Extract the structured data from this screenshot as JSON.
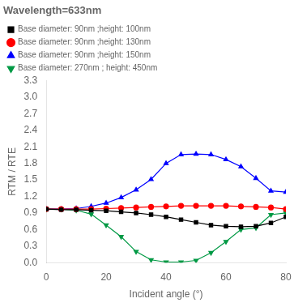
{
  "chart_data": {
    "type": "line",
    "title": "Wavelength=633nm",
    "xlabel": "Incident angle (°)",
    "ylabel": "RTM / RTE",
    "xlim": [
      0,
      80
    ],
    "ylim": [
      0.0,
      3.3
    ],
    "xticks": [
      0,
      20,
      40,
      60,
      80
    ],
    "yticks": [
      {
        "value": 0.0,
        "label": "0.0"
      },
      0.3,
      0.6,
      0.9,
      1.2,
      1.5,
      1.8,
      2.1,
      2.4,
      2.7,
      {
        "value": 3.0,
        "label": "3.0"
      },
      3.3
    ],
    "grid": false,
    "legend": "upper left",
    "series": [
      {
        "name": "Base diameter: 90nm ;height: 100nm",
        "color": "black",
        "marker": "square",
        "x": [
          0,
          5,
          10,
          15,
          20,
          25,
          30,
          35,
          40,
          45,
          50,
          55,
          60,
          65,
          70,
          75,
          80
        ],
        "values": [
          0.97,
          0.96,
          0.96,
          0.95,
          0.94,
          0.92,
          0.9,
          0.87,
          0.83,
          0.78,
          0.73,
          0.68,
          0.66,
          0.65,
          0.66,
          0.72,
          0.83
        ]
      },
      {
        "name": "Base diameter: 90nm ;height: 130nm",
        "color": "red",
        "marker": "circle",
        "x": [
          0,
          5,
          10,
          15,
          20,
          25,
          30,
          35,
          40,
          45,
          50,
          55,
          60,
          65,
          70,
          75,
          80
        ],
        "values": [
          0.97,
          0.97,
          0.97,
          0.97,
          0.98,
          0.99,
          1.0,
          1.01,
          1.02,
          1.03,
          1.03,
          1.03,
          1.03,
          1.02,
          1.01,
          1.0,
          0.97
        ]
      },
      {
        "name": "Base diameter: 90nm ;height: 150nm",
        "color": "blue",
        "marker": "triangle-up",
        "x": [
          0,
          5,
          10,
          15,
          20,
          25,
          30,
          35,
          40,
          45,
          50,
          55,
          60,
          65,
          70,
          75,
          80
        ],
        "values": [
          0.97,
          0.97,
          0.98,
          1.02,
          1.08,
          1.18,
          1.32,
          1.51,
          1.8,
          1.96,
          1.97,
          1.96,
          1.87,
          1.74,
          1.53,
          1.3,
          1.28
        ]
      },
      {
        "name": "Base diameter: 270nm ; height: 450nm",
        "color": "#009944",
        "marker": "triangle-down",
        "x": [
          0,
          5,
          10,
          15,
          20,
          25,
          30,
          35,
          40,
          45,
          50,
          55,
          60,
          65,
          70,
          75,
          80
        ],
        "values": [
          0.97,
          0.97,
          0.95,
          0.88,
          0.68,
          0.47,
          0.2,
          0.05,
          0.01,
          0.01,
          0.04,
          0.18,
          0.38,
          0.6,
          0.63,
          0.87,
          0.9
        ]
      }
    ]
  }
}
